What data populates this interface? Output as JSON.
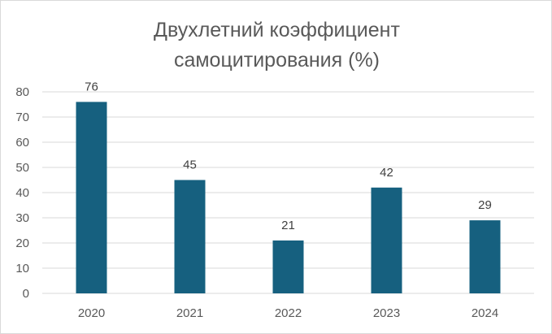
{
  "chart_data": {
    "type": "bar",
    "title_lines": [
      "Двухлетний коэффициент",
      "самоцитирования (%)"
    ],
    "categories": [
      "2020",
      "2021",
      "2022",
      "2023",
      "2024"
    ],
    "values": [
      76,
      45,
      21,
      42,
      29
    ],
    "data_labels": [
      "76",
      "45",
      "21",
      "42",
      "29"
    ],
    "y_ticks": [
      "0",
      "10",
      "20",
      "30",
      "40",
      "50",
      "60",
      "70",
      "80"
    ],
    "ylim": [
      0,
      80
    ],
    "grid": true,
    "legend": "none",
    "bar_color": "#16607f",
    "grid_color": "#d9d9d9"
  }
}
